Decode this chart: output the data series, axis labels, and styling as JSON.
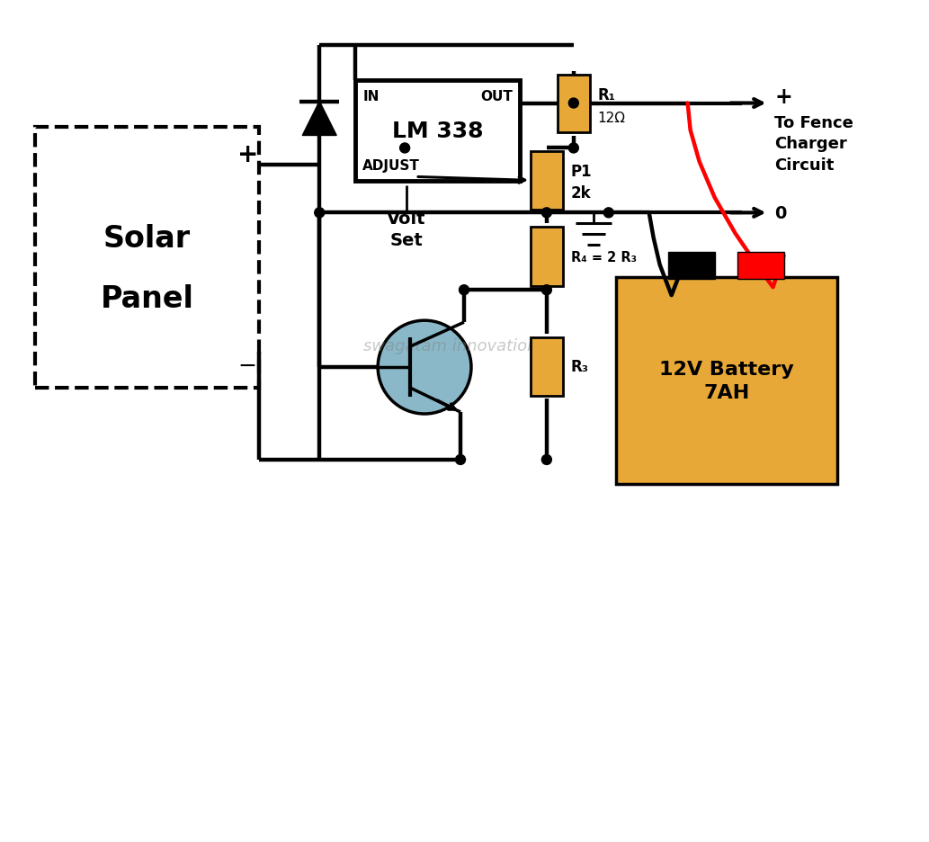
{
  "bg_color": "#ffffff",
  "lc": "#000000",
  "default_lw": 3.2,
  "rc": "#e8a838",
  "tc": "#8ab8c8",
  "lm338": "LM 338",
  "solar1": "Solar",
  "solar2": "Panel",
  "bat1": "12V Battery",
  "bat2": "7AH",
  "fence": "To Fence\nCharger\nCircuit",
  "wm": "swagatam innovations",
  "in_lbl": "IN",
  "out_lbl": "OUT",
  "adj_lbl": "ADJUST",
  "r1_lbl": "R₁",
  "r1_val": "12Ω",
  "p1_lbl": "P1",
  "p1_val": "2k",
  "r4_lbl": "R₄ = 2 R₃",
  "r3_lbl": "R₃",
  "volt_set": "Volt\nSet"
}
